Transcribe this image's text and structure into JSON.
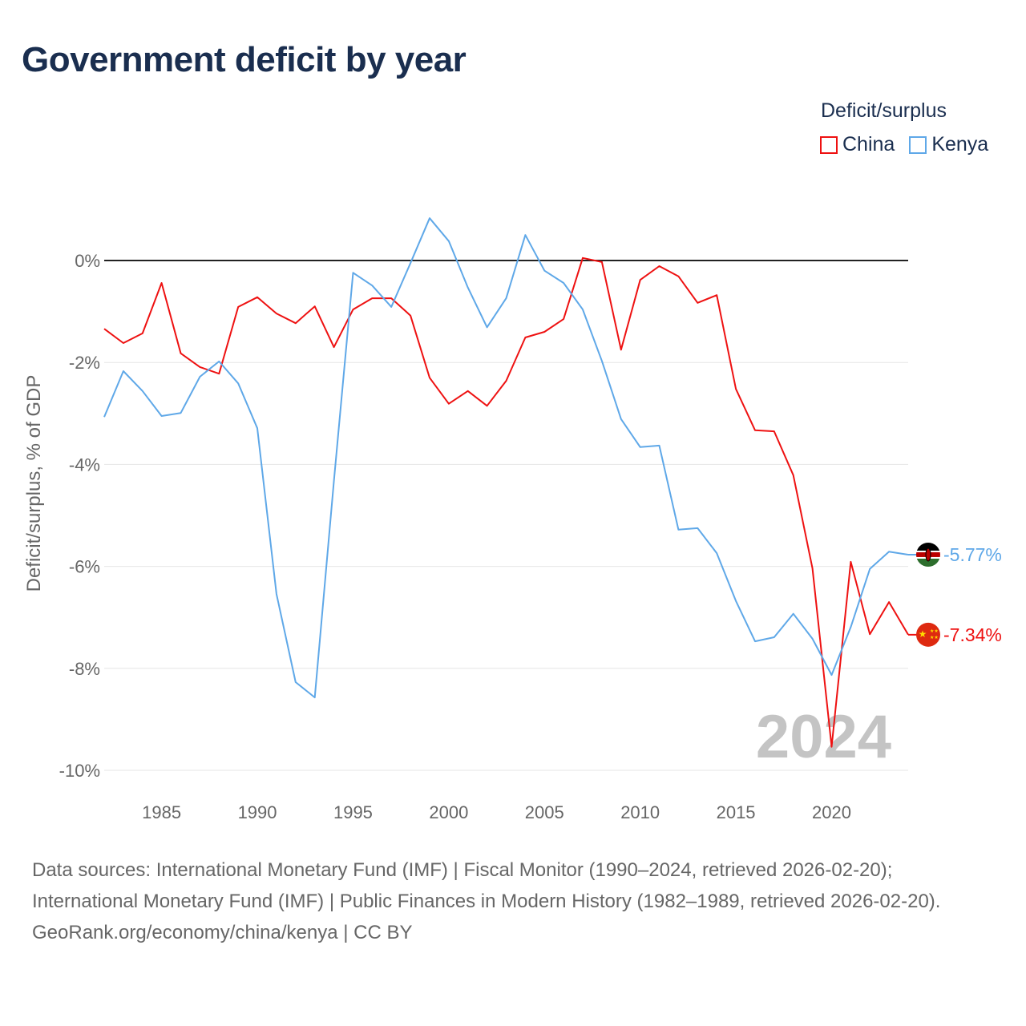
{
  "title": "Government deficit by year",
  "legend": {
    "title": "Deficit/surplus"
  },
  "year_watermark": "2024",
  "chart_data": {
    "type": "line",
    "title": "Government deficit by year",
    "xlabel": "",
    "ylabel": "Deficit/surplus, % of GDP",
    "xlim": [
      1982,
      2024
    ],
    "ylim": [
      -10,
      0
    ],
    "grid": true,
    "legend_position": "top-right",
    "x_ticks": [
      1985,
      1990,
      1995,
      2000,
      2005,
      2010,
      2015,
      2020
    ],
    "y_ticks": [
      0,
      -2,
      -4,
      -6,
      -8,
      -10
    ],
    "y_tick_labels": [
      "0%",
      "-2%",
      "-4%",
      "-6%",
      "-8%",
      "-10%"
    ],
    "x": [
      1982,
      1983,
      1984,
      1985,
      1986,
      1987,
      1988,
      1989,
      1990,
      1991,
      1992,
      1993,
      1994,
      1995,
      1996,
      1997,
      1998,
      1999,
      2000,
      2001,
      2002,
      2003,
      2004,
      2005,
      2006,
      2007,
      2008,
      2009,
      2010,
      2011,
      2012,
      2013,
      2014,
      2015,
      2016,
      2017,
      2018,
      2019,
      2020,
      2021,
      2022,
      2023,
      2024
    ],
    "series": [
      {
        "name": "China",
        "color": "#ee1111",
        "end_label": "-7.34%",
        "values": [
          -1.34,
          -1.62,
          -1.43,
          -0.44,
          -1.82,
          -2.09,
          -2.22,
          -0.91,
          -0.72,
          -1.04,
          -1.23,
          -0.9,
          -1.7,
          -0.96,
          -0.74,
          -0.74,
          -1.08,
          -2.3,
          -2.81,
          -2.56,
          -2.85,
          -2.36,
          -1.51,
          -1.4,
          -1.15,
          0.05,
          -0.03,
          -1.75,
          -0.38,
          -0.11,
          -0.31,
          -0.83,
          -0.68,
          -2.52,
          -3.33,
          -3.35,
          -4.21,
          -6.04,
          -9.54,
          -5.91,
          -7.33,
          -6.7,
          -7.34
        ]
      },
      {
        "name": "Kenya",
        "color": "#5fa8e8",
        "end_label": "-5.77%",
        "values": [
          -3.07,
          -2.17,
          -2.56,
          -3.05,
          -2.99,
          -2.28,
          -1.98,
          -2.41,
          -3.29,
          -6.54,
          -8.27,
          -8.57,
          -4.32,
          -0.24,
          -0.49,
          -0.91,
          -0.05,
          0.83,
          0.38,
          -0.53,
          -1.31,
          -0.74,
          0.5,
          -0.2,
          -0.44,
          -0.96,
          -1.97,
          -3.11,
          -3.66,
          -3.63,
          -5.28,
          -5.25,
          -5.74,
          -6.68,
          -7.47,
          -7.39,
          -6.93,
          -7.42,
          -8.13,
          -7.19,
          -6.05,
          -5.71,
          -5.77
        ]
      }
    ]
  },
  "footer": {
    "sources": "Data sources: International Monetary Fund (IMF) | Fiscal Monitor (1990–2024, retrieved 2026-02-20); International Monetary Fund (IMF) | Public Finances in Modern History (1982–1989, retrieved 2026-02-20).",
    "credit": "GeoRank.org/economy/china/kenya | CC BY"
  }
}
